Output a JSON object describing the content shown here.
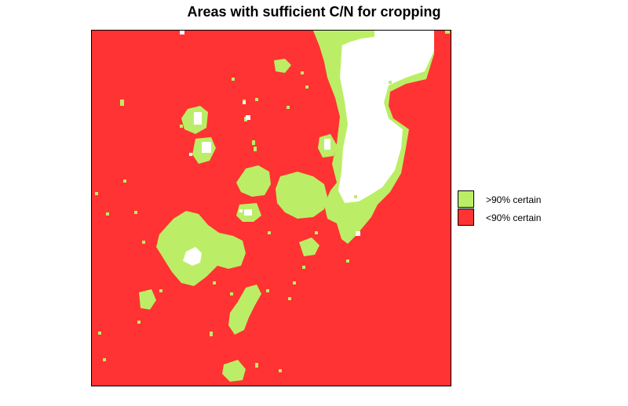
{
  "title": "Areas with sufficient C/N for cropping",
  "legend": {
    "items": [
      {
        "label": ">90% certain",
        "color": "#bbee66"
      },
      {
        "label": "<90% certain",
        "color": "#ff3333"
      }
    ]
  },
  "colors": {
    "green": "#bbee66",
    "red": "#ff3333",
    "nodata": "#ffffff"
  }
}
